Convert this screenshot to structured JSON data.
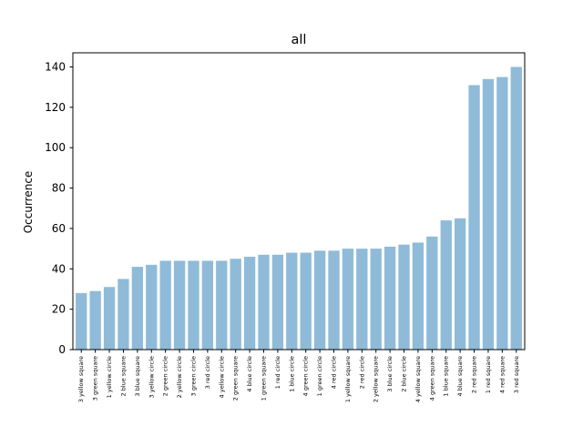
{
  "chart_data": {
    "type": "bar",
    "title": "all",
    "xlabel": "",
    "ylabel": "Occurrence",
    "ylim": [
      0,
      147
    ],
    "yticks": [
      0,
      20,
      40,
      60,
      80,
      100,
      120,
      140
    ],
    "grid": false,
    "bar_color": "#8fbbd9",
    "categories": [
      "3 yellow square",
      "3 green square",
      "1 yellow circle",
      "2 blue square",
      "3 blue square",
      "3 yellow circle",
      "2 green circle",
      "2 yellow circle",
      "3 green circle",
      "3 red circle",
      "4 yellow circle",
      "2 green square",
      "4 blue circle",
      "1 green square",
      "1 red circle",
      "1 blue circle",
      "4 green circle",
      "1 green circle",
      "4 red circle",
      "1 yellow square",
      "2 red circle",
      "2 yellow square",
      "3 blue circle",
      "2 blue circle",
      "4 yellow square",
      "4 green square",
      "1 blue square",
      "4 blue square",
      "2 red square",
      "1 red square",
      "4 red square",
      "3 red square"
    ],
    "values": [
      28,
      29,
      31,
      35,
      41,
      42,
      44,
      44,
      44,
      44,
      44,
      45,
      46,
      47,
      47,
      48,
      48,
      49,
      49,
      50,
      50,
      50,
      51,
      52,
      53,
      56,
      64,
      65,
      131,
      134,
      135,
      140
    ]
  }
}
